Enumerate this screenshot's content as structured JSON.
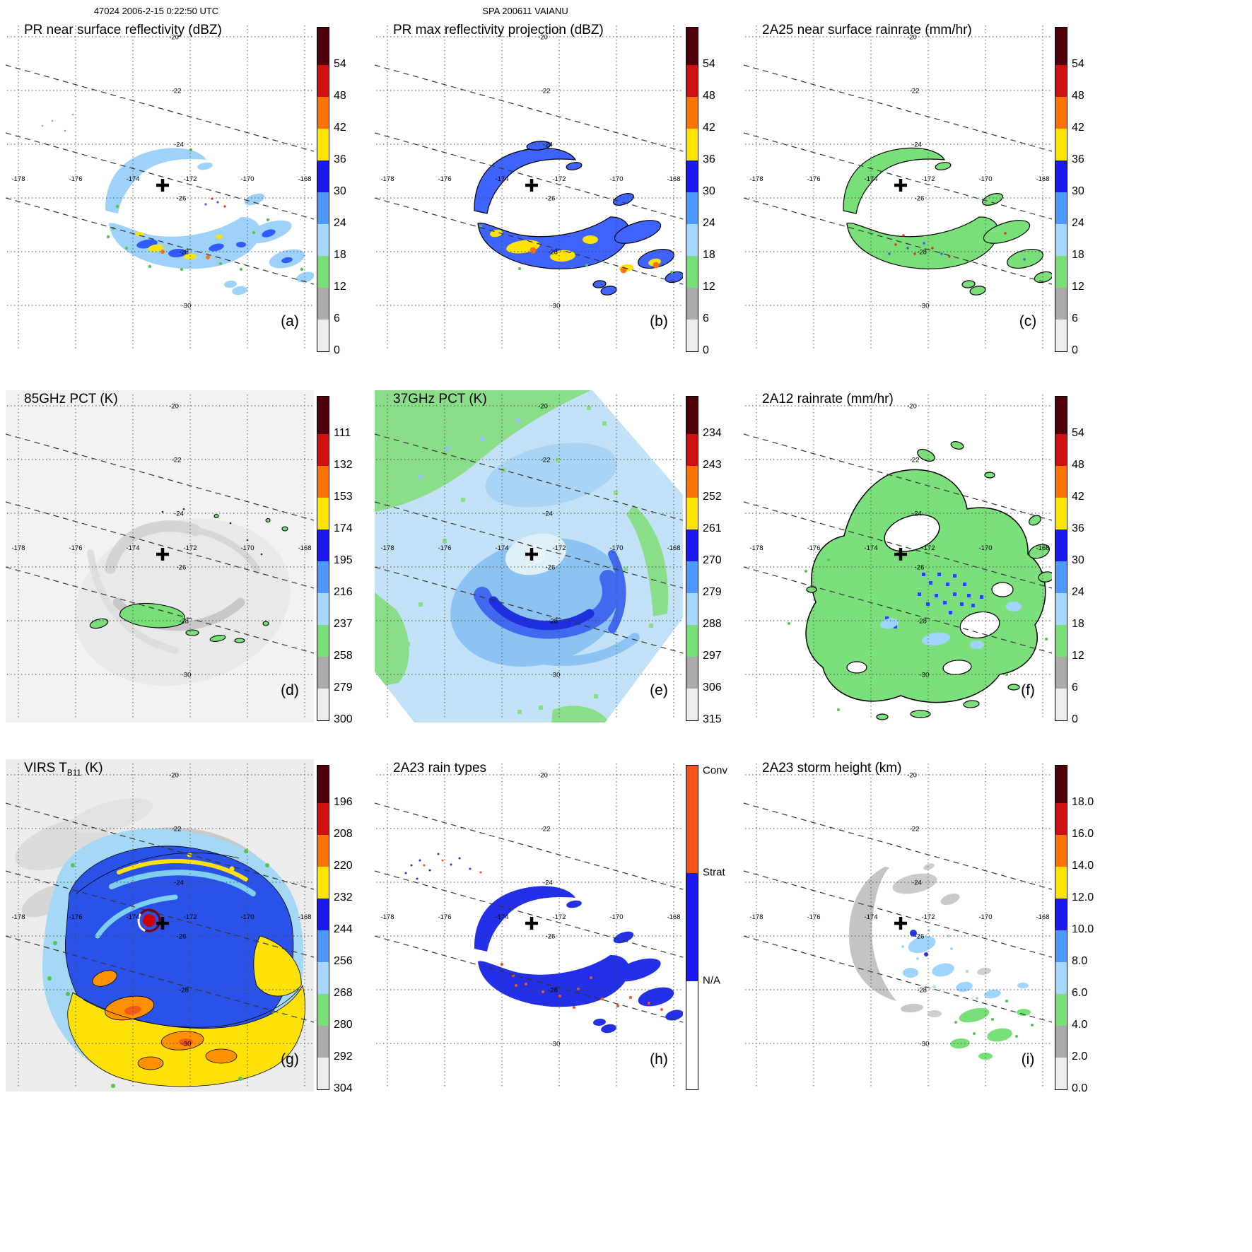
{
  "header": {
    "left": "47024 2006-2-15 0:22:50 UTC",
    "center": "SPA 200611 VAIANU"
  },
  "map_labels": {
    "lons": [
      "-178",
      "-176",
      "-174",
      "-172",
      "-170",
      "-168"
    ],
    "lats": [
      "-20",
      "-22",
      "-24",
      "-26",
      "-28",
      "-30"
    ]
  },
  "colorbar_colors": [
    "#4f0008",
    "#cf1010",
    "#ff7400",
    "#ffe400",
    "#1a1aee",
    "#4d9aff",
    "#a6d8ff",
    "#79df79",
    "#ababab",
    "#ededed"
  ],
  "rain_type_bar": {
    "colors": [
      "#f4531a",
      "#1a1aee",
      "#ffffff"
    ],
    "labels": [
      "Conv",
      "Strat",
      "N/A"
    ]
  },
  "panels": [
    {
      "id": "a",
      "title": "PR near surface reflectivity (dBZ)",
      "letter": "(a)",
      "bar": "standard",
      "ticks": [
        "54",
        "48",
        "42",
        "36",
        "30",
        "24",
        "18",
        "12",
        "6",
        "0"
      ]
    },
    {
      "id": "b",
      "title": "PR max reflectivity projection (dBZ)",
      "letter": "(b)",
      "bar": "standard",
      "ticks": [
        "54",
        "48",
        "42",
        "36",
        "30",
        "24",
        "18",
        "12",
        "6",
        "0"
      ]
    },
    {
      "id": "c",
      "title": "2A25 near surface rainrate (mm/hr)",
      "letter": "(c)",
      "bar": "standard",
      "ticks": [
        "54",
        "48",
        "42",
        "36",
        "30",
        "24",
        "18",
        "12",
        "6",
        "0"
      ]
    },
    {
      "id": "d",
      "title": "85GHz PCT (K)",
      "letter": "(d)",
      "bar": "standard",
      "ticks": [
        "111",
        "132",
        "153",
        "174",
        "195",
        "216",
        "237",
        "258",
        "279",
        "300"
      ]
    },
    {
      "id": "e",
      "title": "37GHz PCT (K)",
      "letter": "(e)",
      "bar": "standard",
      "ticks": [
        "234",
        "243",
        "252",
        "261",
        "270",
        "279",
        "288",
        "297",
        "306",
        "315"
      ]
    },
    {
      "id": "f",
      "title": "2A12 rainrate (mm/hr)",
      "letter": "(f)",
      "bar": "standard",
      "ticks": [
        "54",
        "48",
        "42",
        "36",
        "30",
        "24",
        "18",
        "12",
        "6",
        "0"
      ]
    },
    {
      "id": "g",
      "title": "VIRS TB11 (K)",
      "title_pre": "VIRS T",
      "title_sub": "B11",
      "title_post": " (K)",
      "letter": "(g)",
      "bar": "standard",
      "ticks": [
        "196",
        "208",
        "220",
        "232",
        "244",
        "256",
        "268",
        "280",
        "292",
        "304"
      ]
    },
    {
      "id": "h",
      "title": "2A23 rain types",
      "letter": "(h)",
      "bar": "raintype",
      "ticks": []
    },
    {
      "id": "i",
      "title": "2A23 storm height (km)",
      "letter": "(i)",
      "bar": "standard",
      "ticks": [
        "18.0",
        "16.0",
        "14.0",
        "12.0",
        "10.0",
        "8.0",
        "6.0",
        "4.0",
        "2.0",
        "0.0"
      ]
    }
  ],
  "chart_data": {
    "type": "heatmap",
    "title": "SPA 200611 VAIANU",
    "subtitle": "TRMM orbit 47024, 2006-2-15 0:22:50 UTC",
    "layout": "3x3 grid of geographic panels sharing one lat/lon graticule; each panel has its own vertical colorbar on the right; dashed diagonal lines mark satellite swath edges; a bold + marks the storm center near lon -173.4, lat -25.4",
    "geo": {
      "lon_ticks": [
        -178,
        -176,
        -174,
        -172,
        -170,
        -168
      ],
      "lat_ticks": [
        -20,
        -22,
        -24,
        -26,
        -28,
        -30
      ],
      "storm_center": {
        "lon": -173.4,
        "lat": -25.4
      }
    },
    "shared_colorbar_order_top_to_bottom": [
      "dark-maroon",
      "red",
      "orange",
      "yellow",
      "blue",
      "medium-blue",
      "light-blue",
      "green",
      "gray",
      "light-gray/white"
    ],
    "panels": [
      {
        "letter": "(a)",
        "product": "PR near surface reflectivity",
        "units": "dBZ",
        "colorbar_ticks": [
          54,
          48,
          42,
          36,
          30,
          24,
          18,
          12,
          6,
          0
        ],
        "description": "Narrow PR swath band running NW-SE; curved rainband west/north of center, broad echo shield south of center with embedded 30-42 dBZ cells, scattered echoes to the southeast"
      },
      {
        "letter": "(b)",
        "product": "PR max reflectivity projection",
        "units": "dBZ",
        "colorbar_ticks": [
          54,
          48,
          42,
          36,
          30,
          24,
          18,
          12,
          6,
          0
        ],
        "description": "Same swath as (a) but stronger values; blue 24-36 dBZ regions outlined in black with larger yellow/orange 36-48 dBZ cores"
      },
      {
        "letter": "(c)",
        "product": "2A25 near surface rainrate",
        "units": "mm/hr",
        "colorbar_ticks": [
          54,
          48,
          42,
          36,
          30,
          24,
          18,
          12,
          6,
          0
        ],
        "description": "Rain areas shown mostly as light (green) rates with black outlines and sparse embedded higher-rate speckles"
      },
      {
        "letter": "(d)",
        "product": "85GHz PCT",
        "units": "K",
        "colorbar_ticks": [
          111,
          132,
          153,
          174,
          195,
          216,
          237,
          258,
          279,
          300
        ],
        "description": "Wide TMI swath, mostly warm (light gray ~280-300 K); depressed PCT (green ~237-258 K, black contoured) patches in the band south of the center"
      },
      {
        "letter": "(e)",
        "product": "37GHz PCT",
        "units": "K",
        "colorbar_ticks": [
          234,
          243,
          252,
          261,
          270,
          279,
          288,
          297,
          306,
          315
        ],
        "description": "Full swath colored: green ~288 K background at swath edges, light blue ~279 K over the storm, dark blue ~270 K C-shaped band curving south of the eye, near-white warm eye region"
      },
      {
        "letter": "(f)",
        "product": "2A12 rainrate",
        "units": "mm/hr",
        "colorbar_ticks": [
          54,
          48,
          42,
          36,
          30,
          24,
          18,
          12,
          6,
          0
        ],
        "description": "Large black-outlined light-rain (green) shield wrapped around a rain-free eye, with clusters of 24-36 mm/hr (blue) pixels southeast of the center and scattered outer rain patches"
      },
      {
        "letter": "(g)",
        "product": "VIRS TB11 brightness temperature",
        "units": "K",
        "colorbar_ticks": [
          196,
          208,
          220,
          232,
          244,
          256,
          268,
          280,
          292,
          304
        ],
        "description": "Full VIRS scene: cold cloud shield (blue 232-256 K) over the storm, very cold tops (yellow/orange 196-232 K) in bands south and east, warmest (dark red, <196K scale top) pixel ring at the eye, gray/white warm ocean to the northwest"
      },
      {
        "letter": "(h)",
        "product": "2A23 rain types",
        "units": "category",
        "categories": [
          "Conv",
          "Strat",
          "N/A"
        ],
        "description": "PR swath rain classification: predominantly stratiform (blue) echoes matching panel (a), with scattered convective (orange-red) pixels embedded in the southern band"
      },
      {
        "letter": "(i)",
        "product": "2A23 storm height",
        "units": "km",
        "colorbar_ticks": [
          18.0,
          16.0,
          14.0,
          12.0,
          10.0,
          8.0,
          6.0,
          4.0,
          2.0,
          0.0
        ],
        "description": "Echo-top heights in the PR swath: mostly 4-6 km (gray) in the western band, 8-10 km (light blue) near and southeast of the center, 6 km (green) patches in the outer southeastern echoes"
      }
    ]
  }
}
